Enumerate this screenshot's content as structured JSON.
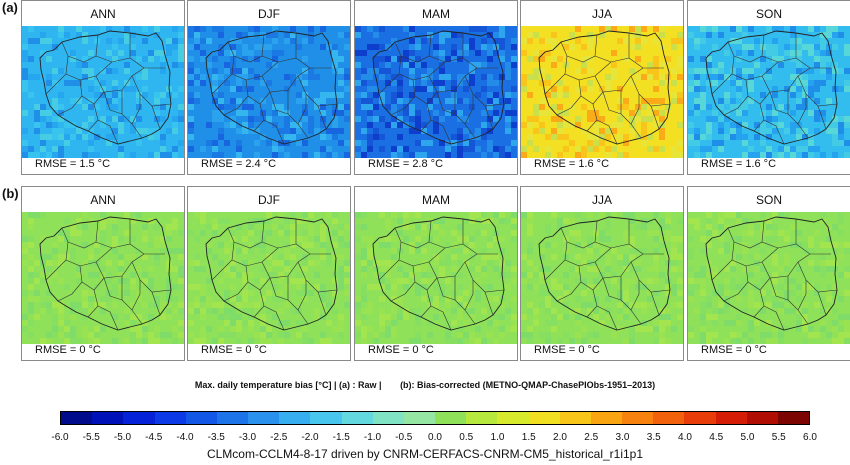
{
  "row_labels": [
    "(a)",
    "(b)"
  ],
  "rows": [
    {
      "id": "a",
      "panels": [
        {
          "season": "ANN",
          "rmse": "RMSE = 1.5 °C",
          "bias": -1.5,
          "palette": [
            "#2fb6f0",
            "#39c4ef",
            "#25a6ee",
            "#46cde4",
            "#1f8fe8"
          ]
        },
        {
          "season": "DJF",
          "rmse": "RMSE = 2.4 °C",
          "bias": -2.4,
          "palette": [
            "#1f8fe8",
            "#2aa2ee",
            "#1b79e4",
            "#35b6ef",
            "#1765df"
          ]
        },
        {
          "season": "MAM",
          "rmse": "RMSE = 2.8 °C",
          "bias": -2.8,
          "palette": [
            "#1a6fe2",
            "#238ce8",
            "#1556d7",
            "#2ea6ee",
            "#0e3ecc"
          ]
        },
        {
          "season": "JJA",
          "rmse": "RMSE = 1.6 °C",
          "bias": 1.6,
          "palette": [
            "#f3e023",
            "#f9c51b",
            "#e7e53a",
            "#fbab18",
            "#c9e04a"
          ]
        },
        {
          "season": "SON",
          "rmse": "RMSE = 1.6 °C",
          "bias": -1.6,
          "palette": [
            "#33bdef",
            "#26a3ee",
            "#43cbe6",
            "#1f8ee8",
            "#57d7d7"
          ]
        }
      ]
    },
    {
      "id": "b",
      "panels": [
        {
          "season": "ANN",
          "rmse": "RMSE = 0 °C",
          "bias": 0,
          "palette": [
            "#8ee158",
            "#86df60",
            "#99e353",
            "#7fdc69",
            "#a2e54f"
          ]
        },
        {
          "season": "DJF",
          "rmse": "RMSE = 0 °C",
          "bias": 0,
          "palette": [
            "#8ee158",
            "#86df60",
            "#99e353",
            "#7fdc69",
            "#a2e54f"
          ]
        },
        {
          "season": "MAM",
          "rmse": "RMSE = 0 °C",
          "bias": 0,
          "palette": [
            "#8ee158",
            "#86df60",
            "#99e353",
            "#7fdc69",
            "#a2e54f"
          ]
        },
        {
          "season": "JJA",
          "rmse": "RMSE = 0 °C",
          "bias": 0,
          "palette": [
            "#8ee158",
            "#86df60",
            "#99e353",
            "#7fdc69",
            "#a2e54f"
          ]
        },
        {
          "season": "SON",
          "rmse": "RMSE = 0 °C",
          "bias": 0,
          "palette": [
            "#8ee158",
            "#86df60",
            "#99e353",
            "#7fdc69",
            "#a2e54f"
          ]
        }
      ]
    }
  ],
  "caption": {
    "part1": "Max. daily temperature bias [°C] |  (a) : Raw |",
    "part2": "(b): Bias-corrected (METNO-QMAP-ChasePIObs-1951–2013)"
  },
  "colorbar": {
    "ticks": [
      "-6.0",
      "-5.5",
      "-5.0",
      "-4.5",
      "-4.0",
      "-3.5",
      "-3.0",
      "-2.5",
      "-2.0",
      "-1.5",
      "-1.0",
      "-0.5",
      "0.0",
      "0.5",
      "1.0",
      "1.5",
      "2.0",
      "2.5",
      "3.0",
      "3.5",
      "4.0",
      "4.5",
      "5.0",
      "5.5",
      "6.0"
    ],
    "colors": [
      "#000c8c",
      "#0011b8",
      "#0522d8",
      "#0b3ae6",
      "#1257e6",
      "#1d74e8",
      "#2a92ec",
      "#37aef0",
      "#49c6ee",
      "#63d8df",
      "#7fe3c4",
      "#94e6a2",
      "#8ee158",
      "#b6e83e",
      "#d8ea2c",
      "#f1e022",
      "#f8c618",
      "#f9a512",
      "#f7820e",
      "#f2610b",
      "#e83d08",
      "#d51c05",
      "#b00d03",
      "#7c0401"
    ]
  },
  "footer": "CLMcom-CCLM4-8-17 driven by CNRM-CERFACS-CNRM-CM5_historical_r1i1p1"
}
